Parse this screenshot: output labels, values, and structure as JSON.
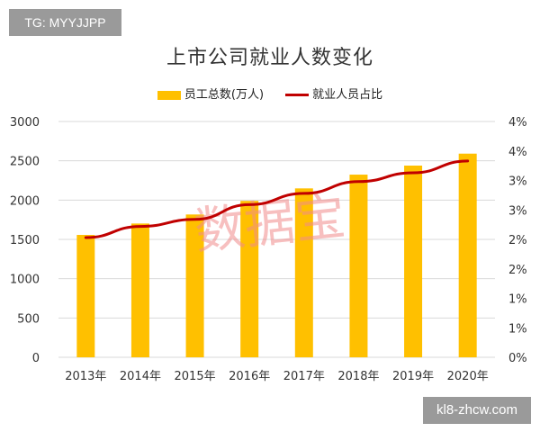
{
  "tag_label": "TG: MYYJJPP",
  "site_label": "kl8-zhcw.com",
  "watermark": "数据宝",
  "chart_data": {
    "type": "bar+line",
    "title": "上市公司就业人数变化",
    "categories": [
      "2013年",
      "2014年",
      "2015年",
      "2016年",
      "2017年",
      "2018年",
      "2019年",
      "2020年"
    ],
    "series": [
      {
        "name": "员工总数(万人)",
        "type": "bar",
        "axis": "left",
        "color": "#FFC000",
        "values": [
          1557,
          1702,
          1817,
          1990,
          2149,
          2324,
          2439,
          2591
        ]
      },
      {
        "name": "就业人员占比",
        "type": "line",
        "axis": "right",
        "color": "#C00000",
        "values": [
          2.03,
          2.22,
          2.34,
          2.59,
          2.78,
          2.98,
          3.13,
          3.33
        ]
      }
    ],
    "y_left": {
      "range": [
        0,
        3000
      ],
      "ticks": [
        "0",
        "500",
        "1000",
        "1500",
        "2000",
        "2500",
        "3000"
      ]
    },
    "y_right": {
      "range": [
        0,
        4
      ],
      "unit": "%",
      "ticks": [
        "0%",
        "1%",
        "1%",
        "2%",
        "2%",
        "3%",
        "3%",
        "4%",
        "4%"
      ]
    },
    "grid": true,
    "legend": "top"
  }
}
